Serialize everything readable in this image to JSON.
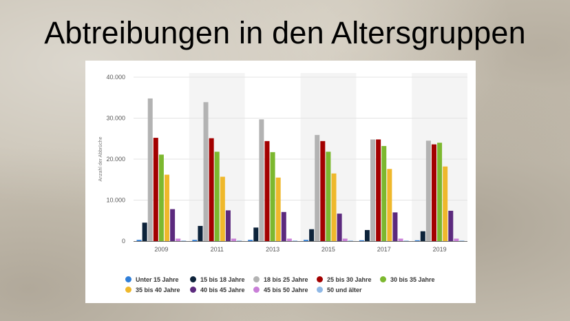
{
  "slide": {
    "title": "Abtreibungen in den Altersgruppen"
  },
  "chart_data": {
    "type": "bar",
    "title": "Abtreibungen in den Altersgruppen",
    "xlabel": "",
    "ylabel": "Anzahl der Abbrüche",
    "ylim": [
      0,
      40000
    ],
    "yticks": [
      0,
      10000,
      20000,
      30000,
      40000
    ],
    "ytick_labels": [
      "0",
      "10.000",
      "20.000",
      "30.000",
      "40.000"
    ],
    "grid": true,
    "legend_position": "bottom",
    "categories": [
      "2009",
      "2011",
      "2013",
      "2015",
      "2017",
      "2019"
    ],
    "series": [
      {
        "name": "Unter 15 Jahre",
        "color": "#2f7ed8",
        "values": [
          300,
          300,
          300,
          300,
          200,
          200
        ]
      },
      {
        "name": "15 bis 18 Jahre",
        "color": "#0d233a",
        "values": [
          4500,
          3700,
          3300,
          2900,
          2700,
          2400
        ]
      },
      {
        "name": "18 bis 25 Jahre",
        "color": "#b3b3b3",
        "values": [
          34800,
          33900,
          29700,
          25900,
          24800,
          24500
        ]
      },
      {
        "name": "25 bis 30 Jahre",
        "color": "#a30000",
        "values": [
          25200,
          25100,
          24400,
          24400,
          24800,
          23600
        ]
      },
      {
        "name": "30 bis 35 Jahre",
        "color": "#7cb82f",
        "values": [
          21100,
          21800,
          21700,
          21800,
          23200,
          24000
        ]
      },
      {
        "name": "35 bis 40 Jahre",
        "color": "#efb82b",
        "values": [
          16200,
          15700,
          15500,
          16500,
          17600,
          18200
        ]
      },
      {
        "name": "40 bis 45 Jahre",
        "color": "#5c2a7e",
        "values": [
          7800,
          7500,
          7100,
          6700,
          7000,
          7400
        ]
      },
      {
        "name": "45 bis 50 Jahre",
        "color": "#c97fd8",
        "values": [
          600,
          600,
          600,
          600,
          600,
          600
        ]
      },
      {
        "name": "50 und älter",
        "color": "#8fb8e6",
        "values": [
          40,
          40,
          40,
          40,
          40,
          40
        ]
      }
    ]
  }
}
